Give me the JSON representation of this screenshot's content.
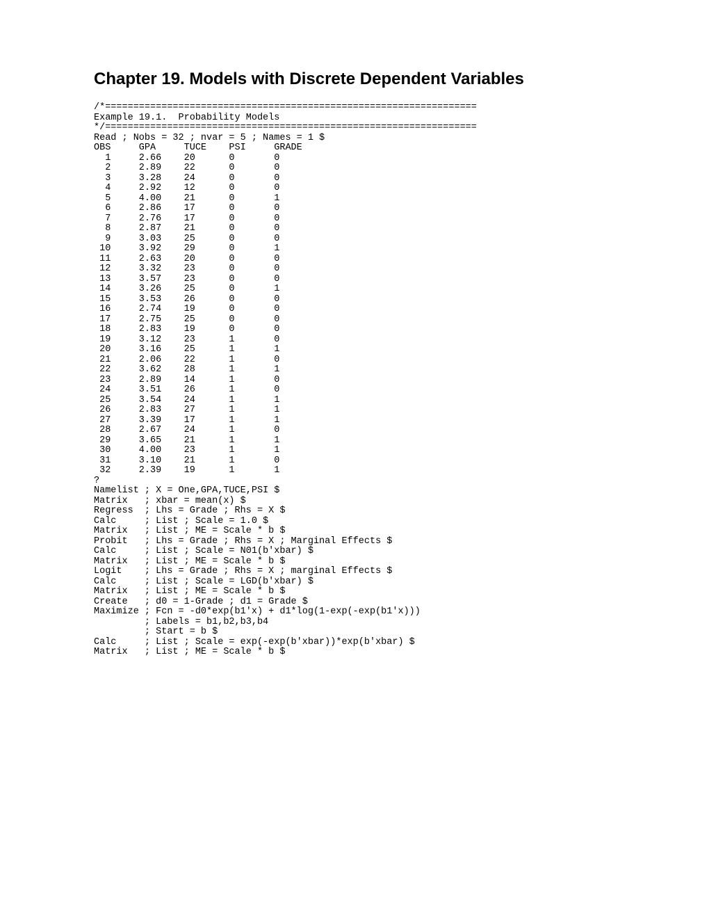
{
  "title": "Chapter 19. Models with Discrete Dependent Variables",
  "divider_top": "/*==================================================================",
  "example_title": "Example 19.1.  Probability Models",
  "divider_bottom": "*/==================================================================",
  "read_line": "Read ; Nobs = 32 ; nvar = 5 ; Names = 1 $",
  "header": "OBS     GPA     TUCE    PSI     GRADE",
  "rows": [
    "  1     2.66    20      0       0",
    "  2     2.89    22      0       0",
    "  3     3.28    24      0       0",
    "  4     2.92    12      0       0",
    "  5     4.00    21      0       1",
    "  6     2.86    17      0       0",
    "  7     2.76    17      0       0",
    "  8     2.87    21      0       0",
    "  9     3.03    25      0       0",
    " 10     3.92    29      0       1",
    " 11     2.63    20      0       0",
    " 12     3.32    23      0       0",
    " 13     3.57    23      0       0",
    " 14     3.26    25      0       1",
    " 15     3.53    26      0       0",
    " 16     2.74    19      0       0",
    " 17     2.75    25      0       0",
    " 18     2.83    19      0       0",
    " 19     3.12    23      1       0",
    " 20     3.16    25      1       1",
    " 21     2.06    22      1       0",
    " 22     3.62    28      1       1",
    " 23     2.89    14      1       0",
    " 24     3.51    26      1       0",
    " 25     3.54    24      1       1",
    " 26     2.83    27      1       1",
    " 27     3.39    17      1       1",
    " 28     2.67    24      1       0",
    " 29     3.65    21      1       1",
    " 30     4.00    23      1       1",
    " 31     3.10    21      1       0",
    " 32     2.39    19      1       1"
  ],
  "qmark": "?",
  "cmds": [
    "Namelist ; X = One,GPA,TUCE,PSI $",
    "Matrix   ; xbar = mean(x) $",
    "Regress  ; Lhs = Grade ; Rhs = X $",
    "Calc     ; List ; Scale = 1.0 $",
    "Matrix   ; List ; ME = Scale * b $",
    "Probit   ; Lhs = Grade ; Rhs = X ; Marginal Effects $",
    "Calc     ; List ; Scale = N01(b'xbar) $",
    "Matrix   ; List ; ME = Scale * b $",
    "Logit    ; Lhs = Grade ; Rhs = X ; marginal Effects $",
    "Calc     ; List ; Scale = LGD(b'xbar) $",
    "Matrix   ; List ; ME = Scale * b $",
    "Create   ; d0 = 1-Grade ; d1 = Grade $",
    "Maximize ; Fcn = -d0*exp(b1'x) + d1*log(1-exp(-exp(b1'x)))",
    "         ; Labels = b1,b2,b3,b4",
    "         ; Start = b $",
    "Calc     ; List ; Scale = exp(-exp(b'xbar))*exp(b'xbar) $",
    "Matrix   ; List ; ME = Scale * b $"
  ]
}
